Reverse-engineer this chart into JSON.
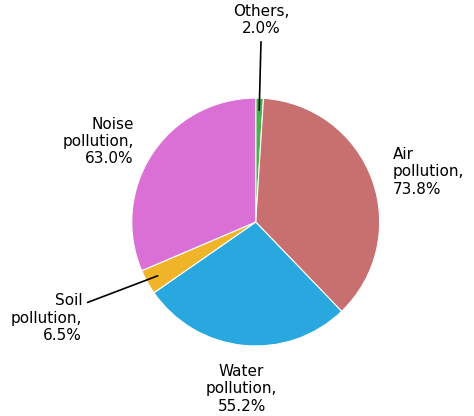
{
  "labels": [
    "Air pollution",
    "Water pollution",
    "Soil pollution",
    "Noise pollution",
    "Others"
  ],
  "values": [
    73.8,
    55.2,
    6.5,
    63.0,
    2.0
  ],
  "colors": [
    "#C87070",
    "#29A8E0",
    "#F0B429",
    "#DA70D6",
    "#4CAF50"
  ],
  "display_pcts": [
    "73.8%",
    "55.2%",
    "6.5%",
    "63.0%",
    "2.0%"
  ],
  "figsize": [
    4.74,
    4.16
  ],
  "dpi": 100,
  "bg_color": "#ffffff",
  "label_fontsize": 11
}
